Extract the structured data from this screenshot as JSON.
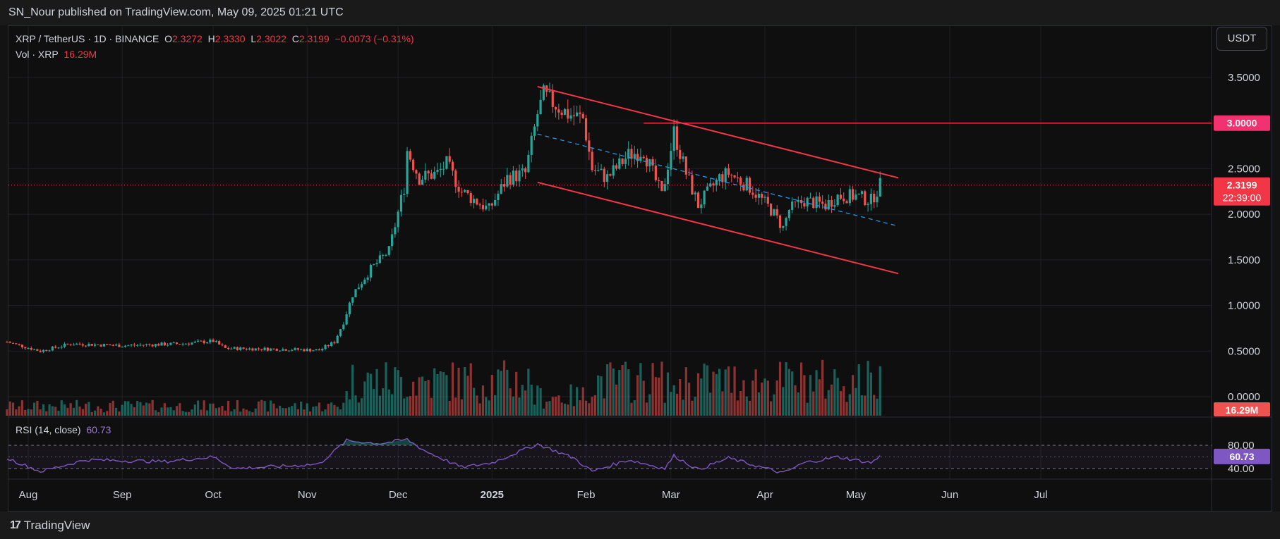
{
  "header": {
    "publisher_text": "SN_Nour published on TradingView.com, May 09, 2025 01:21 UTC"
  },
  "legend": {
    "symbol": "XRP / TetherUS · 1D · BINANCE",
    "o_label": "O",
    "o_value": "2.3272",
    "h_label": "H",
    "h_value": "2.3330",
    "l_label": "L",
    "l_value": "2.3022",
    "c_label": "C",
    "c_value": "2.3199",
    "change": "−0.0073 (−0.31%)",
    "vol_label": "Vol · XRP",
    "vol_value": "16.29M"
  },
  "currency_button": "USDT",
  "rsi": {
    "label": "RSI (14, close)",
    "value": "60.73"
  },
  "price_tags": {
    "resistance": "3.0000",
    "last_price": "2.3199",
    "countdown": "22:39:00",
    "volume": "16.29M",
    "rsi": "60.73"
  },
  "footer": {
    "brand": "TradingView"
  },
  "colors": {
    "up": "#26a69a",
    "down": "#ef5350",
    "channel": "#f23645",
    "midline": "#2196f3",
    "rsi": "#7e57c2",
    "resistance": "#f23645"
  },
  "chart_data": {
    "type": "candlestick",
    "title": "XRP / TetherUS · 1D · BINANCE",
    "y_ticks": [
      "3.5000",
      "3.0000",
      "2.5000",
      "2.0000",
      "1.5000",
      "1.0000",
      "0.5000",
      "0.0000"
    ],
    "y_tick_values": [
      3.5,
      3.0,
      2.5,
      2.0,
      1.5,
      1.0,
      0.5,
      0.0
    ],
    "ylim": [
      0.0,
      3.6
    ],
    "x_ticks": [
      "Aug",
      "Sep",
      "Oct",
      "Nov",
      "Dec",
      "2025",
      "Feb",
      "Mar",
      "Apr",
      "May",
      "Jun",
      "Jul"
    ],
    "x_tick_dates": [
      "2024-08-01",
      "2024-09-01",
      "2024-10-01",
      "2024-11-01",
      "2024-12-01",
      "2025-01-01",
      "2025-02-01",
      "2025-03-01",
      "2025-04-01",
      "2025-05-01",
      "2025-06-01",
      "2025-07-01"
    ],
    "price_path": [
      [
        "2024-07-25",
        0.6
      ],
      [
        "2024-08-05",
        0.5
      ],
      [
        "2024-08-15",
        0.58
      ],
      [
        "2024-09-01",
        0.56
      ],
      [
        "2024-09-20",
        0.58
      ],
      [
        "2024-10-01",
        0.61
      ],
      [
        "2024-10-05",
        0.53
      ],
      [
        "2024-10-25",
        0.52
      ],
      [
        "2024-11-05",
        0.51
      ],
      [
        "2024-11-10",
        0.6
      ],
      [
        "2024-11-13",
        0.82
      ],
      [
        "2024-11-16",
        1.12
      ],
      [
        "2024-11-22",
        1.4
      ],
      [
        "2024-11-28",
        1.6
      ],
      [
        "2024-12-03",
        2.3
      ],
      [
        "2024-12-04",
        2.7
      ],
      [
        "2024-12-08",
        2.4
      ],
      [
        "2024-12-14",
        2.45
      ],
      [
        "2024-12-17",
        2.55
      ],
      [
        "2024-12-22",
        2.25
      ],
      [
        "2024-12-31",
        2.05
      ],
      [
        "2025-01-06",
        2.4
      ],
      [
        "2025-01-12",
        2.45
      ],
      [
        "2025-01-16",
        3.1
      ],
      [
        "2025-01-18",
        3.3
      ],
      [
        "2025-01-26",
        3.1
      ],
      [
        "2025-01-31",
        3.05
      ],
      [
        "2025-02-03",
        2.5
      ],
      [
        "2025-02-08",
        2.4
      ],
      [
        "2025-02-15",
        2.65
      ],
      [
        "2025-02-20",
        2.7
      ],
      [
        "2025-02-26",
        2.2
      ],
      [
        "2025-03-02",
        2.9
      ],
      [
        "2025-03-06",
        2.45
      ],
      [
        "2025-03-10",
        2.1
      ],
      [
        "2025-03-17",
        2.4
      ],
      [
        "2025-03-20",
        2.45
      ],
      [
        "2025-03-27",
        2.3
      ],
      [
        "2025-04-03",
        2.05
      ],
      [
        "2025-04-07",
        1.85
      ],
      [
        "2025-04-09",
        2.05
      ],
      [
        "2025-04-14",
        2.15
      ],
      [
        "2025-04-21",
        2.1
      ],
      [
        "2025-04-25",
        2.2
      ],
      [
        "2025-05-01",
        2.2
      ],
      [
        "2025-05-06",
        2.15
      ],
      [
        "2025-05-09",
        2.32
      ]
    ],
    "channel_upper": [
      [
        "2025-01-16",
        3.4
      ],
      [
        "2025-05-15",
        2.4
      ]
    ],
    "channel_lower": [
      [
        "2025-01-16",
        2.35
      ],
      [
        "2025-05-15",
        1.35
      ]
    ],
    "channel_mid": [
      [
        "2025-01-16",
        2.88
      ],
      [
        "2025-05-15",
        1.87
      ]
    ],
    "resistance_level": 3.0,
    "resistance_start": "2025-02-20",
    "last_close": 2.3199,
    "last_volume": "16.29M",
    "rsi_ticks": [
      "80.00",
      "40.00"
    ],
    "rsi_levels": [
      80,
      40
    ],
    "rsi_path": [
      [
        "2024-07-25",
        58
      ],
      [
        "2024-08-05",
        35
      ],
      [
        "2024-08-20",
        55
      ],
      [
        "2024-09-15",
        52
      ],
      [
        "2024-10-01",
        60
      ],
      [
        "2024-10-08",
        40
      ],
      [
        "2024-10-28",
        45
      ],
      [
        "2024-11-05",
        48
      ],
      [
        "2024-11-14",
        88
      ],
      [
        "2024-11-25",
        83
      ],
      [
        "2024-12-04",
        90
      ],
      [
        "2024-12-10",
        70
      ],
      [
        "2024-12-22",
        42
      ],
      [
        "2025-01-01",
        50
      ],
      [
        "2025-01-16",
        82
      ],
      [
        "2025-01-28",
        58
      ],
      [
        "2025-02-03",
        35
      ],
      [
        "2025-02-15",
        55
      ],
      [
        "2025-02-27",
        40
      ],
      [
        "2025-03-02",
        62
      ],
      [
        "2025-03-10",
        38
      ],
      [
        "2025-03-20",
        58
      ],
      [
        "2025-04-07",
        32
      ],
      [
        "2025-04-14",
        50
      ],
      [
        "2025-04-25",
        60
      ],
      [
        "2025-05-06",
        50
      ],
      [
        "2025-05-09",
        60.73
      ]
    ]
  }
}
